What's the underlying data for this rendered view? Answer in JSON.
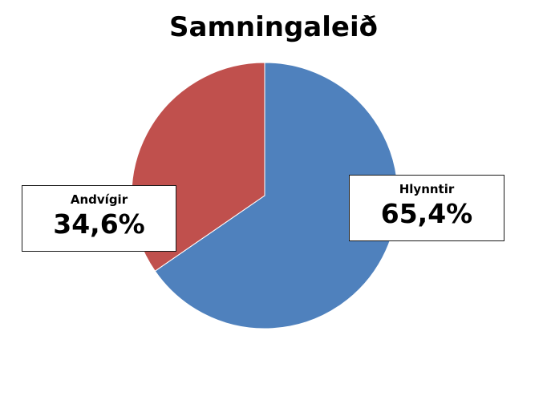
{
  "chart_data": {
    "type": "pie",
    "title": "Samningaleið",
    "slices": [
      {
        "name": "Hlynntir",
        "value": 65.4,
        "label": "65,4%",
        "color": "#4f81bd"
      },
      {
        "name": "Andvígir",
        "value": 34.6,
        "label": "34,6%",
        "color": "#c0504d"
      }
    ],
    "start": "12 o'clock",
    "direction": "clockwise",
    "legend": "none"
  }
}
